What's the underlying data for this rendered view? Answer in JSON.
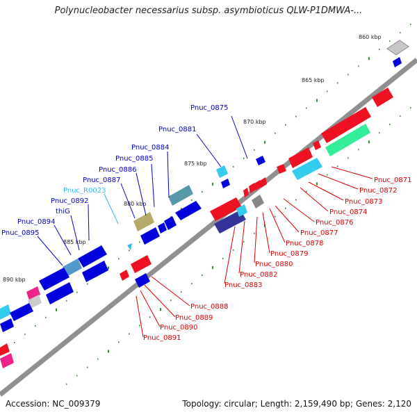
{
  "title": "Polynucleobacter necessarius subsp. asymbioticus QLW-P1DMWA-...",
  "footer": {
    "accession": "Accession: NC_009379",
    "topology": "Topology: circular; Length: 2,159,490 bp; Genes: 2,120"
  },
  "colors": {
    "backbone": "#808080",
    "forward_label": "#0000cc",
    "reverse_label": "#dd0000",
    "rna_label": "#33bbee",
    "tick": "#2e8b2e"
  },
  "kbp_ticks": [
    "860 kbp",
    "865 kbp",
    "870 kbp",
    "875 kbp",
    "880 kbp",
    "885 kbp",
    "890 kbp"
  ],
  "forward_labels": [
    {
      "text": "Pnuc_0875",
      "color": "#0000cc"
    },
    {
      "text": "Pnuc_0881",
      "color": "#0000cc"
    },
    {
      "text": "Pnuc_0884",
      "color": "#0000cc"
    },
    {
      "text": "Pnuc_0885",
      "color": "#0000cc"
    },
    {
      "text": "Pnuc_0886",
      "color": "#0000cc"
    },
    {
      "text": "Pnuc_0887",
      "color": "#0000cc"
    },
    {
      "text": "Pnuc_R0023",
      "color": "#33bbee"
    },
    {
      "text": "Pnuc_0892",
      "color": "#0000cc"
    },
    {
      "text": "thiG",
      "color": "#0000cc"
    },
    {
      "text": "Pnuc_0894",
      "color": "#0000cc"
    },
    {
      "text": "Pnuc_0895",
      "color": "#0000cc"
    }
  ],
  "reverse_labels": [
    {
      "text": "Pnuc_0871",
      "color": "#dd0000"
    },
    {
      "text": "Pnuc_0872",
      "color": "#dd0000"
    },
    {
      "text": "Pnuc_0873",
      "color": "#dd0000"
    },
    {
      "text": "Pnuc_0874",
      "color": "#dd0000"
    },
    {
      "text": "Pnuc_0876",
      "color": "#dd0000"
    },
    {
      "text": "Pnuc_0877",
      "color": "#dd0000"
    },
    {
      "text": "Pnuc_0878",
      "color": "#dd0000"
    },
    {
      "text": "Pnuc_0879",
      "color": "#dd0000"
    },
    {
      "text": "Pnuc_0880",
      "color": "#dd0000"
    },
    {
      "text": "Pnuc_0882",
      "color": "#dd0000"
    },
    {
      "text": "Pnuc_0883",
      "color": "#dd0000"
    },
    {
      "text": "Pnuc_0888",
      "color": "#dd0000"
    },
    {
      "text": "Pnuc_0889",
      "color": "#dd0000"
    },
    {
      "text": "Pnuc_0890",
      "color": "#dd0000"
    },
    {
      "text": "Pnuc_0891",
      "color": "#dd0000"
    }
  ]
}
